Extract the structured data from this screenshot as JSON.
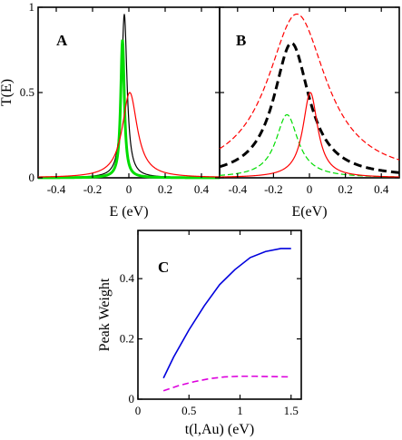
{
  "chart_data": [
    {
      "panel": "A",
      "type": "line",
      "label": "A",
      "xlabel": "E (eV)",
      "ylabel": "T(E)",
      "xlim": [
        -0.5,
        0.5
      ],
      "ylim": [
        0,
        1
      ],
      "xticks": [
        -0.4,
        -0.2,
        0,
        0.2,
        0.4
      ],
      "xtick_labels": [
        "-0.4",
        "-0.2",
        "0",
        "0.2",
        "0.4"
      ],
      "yticks": [
        0,
        0.5,
        1
      ],
      "ytick_labels": [
        "0",
        "0.5",
        "1"
      ],
      "series": [
        {
          "type": "lorentzian",
          "color": "#000000",
          "width": 1.2,
          "dash": "",
          "center": -0.025,
          "gamma": 0.018,
          "amp": 0.96
        },
        {
          "type": "lorentzian",
          "color": "#00dd00",
          "width": 3,
          "dash": "",
          "center": -0.035,
          "gamma": 0.012,
          "amp": 0.81
        },
        {
          "type": "lorentzian",
          "color": "#ff0000",
          "width": 1.2,
          "dash": "",
          "center": 0.005,
          "gamma": 0.05,
          "amp": 0.5
        }
      ]
    },
    {
      "panel": "B",
      "type": "line",
      "label": "B",
      "xlabel": "E(eV)",
      "ylabel": "",
      "xlim": [
        -0.5,
        0.5
      ],
      "ylim": [
        0,
        1
      ],
      "xticks": [
        -0.4,
        -0.2,
        0,
        0.2,
        0.4
      ],
      "xtick_labels": [
        "-0.4",
        "-0.2",
        "0",
        "0.2",
        "0.4"
      ],
      "yticks": [
        0,
        0.5,
        1
      ],
      "series": [
        {
          "type": "lorentzian",
          "color": "#ff0000",
          "width": 1.2,
          "dash": "6,3",
          "center": -0.07,
          "gamma": 0.2,
          "amp": 0.96
        },
        {
          "type": "lorentzian",
          "color": "#000000",
          "width": 3,
          "dash": "9,5",
          "center": -0.1,
          "gamma": 0.12,
          "amp": 0.79
        },
        {
          "type": "lorentzian",
          "color": "#00dd00",
          "width": 1.2,
          "dash": "6,3",
          "center": -0.125,
          "gamma": 0.075,
          "amp": 0.37
        },
        {
          "type": "lorentzian",
          "color": "#ff0000",
          "width": 1.2,
          "dash": "",
          "center": 0.005,
          "gamma": 0.05,
          "amp": 0.5
        }
      ]
    },
    {
      "panel": "C",
      "type": "line",
      "label": "C",
      "xlabel": "t(l,Au) (eV)",
      "ylabel": "Peak Weight",
      "xlim": [
        0,
        1.6
      ],
      "ylim": [
        0,
        0.56
      ],
      "xticks": [
        0,
        0.5,
        1,
        1.5
      ],
      "xtick_labels": [
        "0",
        "0.5",
        "1",
        "1.5"
      ],
      "yticks": [
        0,
        0.2,
        0.4
      ],
      "ytick_labels": [
        "0",
        "0.2",
        "0.4"
      ],
      "series": [
        {
          "color": "#0000dd",
          "width": 1.6,
          "dash": "",
          "x": [
            0.25,
            0.35,
            0.5,
            0.65,
            0.8,
            0.95,
            1.1,
            1.25,
            1.4,
            1.5
          ],
          "y": [
            0.07,
            0.14,
            0.23,
            0.31,
            0.38,
            0.43,
            0.47,
            0.49,
            0.5,
            0.5
          ]
        },
        {
          "color": "#dd00dd",
          "width": 1.6,
          "dash": "7,4",
          "x": [
            0.25,
            0.4,
            0.55,
            0.7,
            0.85,
            1.0,
            1.15,
            1.3,
            1.5
          ],
          "y": [
            0.028,
            0.045,
            0.058,
            0.068,
            0.074,
            0.076,
            0.076,
            0.075,
            0.074
          ]
        }
      ]
    }
  ]
}
